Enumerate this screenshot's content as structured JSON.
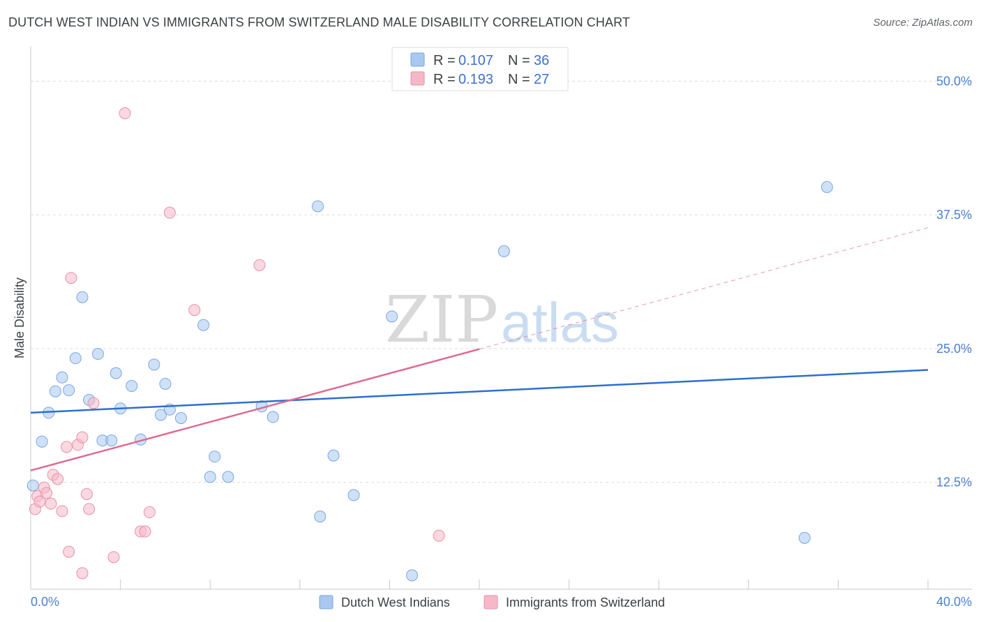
{
  "header": {
    "title": "DUTCH WEST INDIAN VS IMMIGRANTS FROM SWITZERLAND MALE DISABILITY CORRELATION CHART",
    "source": "Source: ZipAtlas.com"
  },
  "legend": {
    "r_label": "R =",
    "n_label": "N =",
    "rows": [
      {
        "r": "0.107",
        "n": "36",
        "color": "#a8c8f0"
      },
      {
        "r": "0.193",
        "n": "27",
        "color": "#f5b8c8"
      }
    ]
  },
  "watermark": {
    "left": "ZIP",
    "right": "atlas"
  },
  "chart_data": {
    "type": "scatter",
    "title": "DUTCH WEST INDIAN VS IMMIGRANTS FROM SWITZERLAND MALE DISABILITY CORRELATION CHART",
    "ylabel": "Male Disability",
    "xlim": [
      0,
      40
    ],
    "ylim": [
      2.5,
      52.5
    ],
    "x_tick_labels": [
      "0.0%",
      "40.0%"
    ],
    "y_ticks": [
      12.5,
      25.0,
      37.5,
      50.0
    ],
    "y_tick_labels": [
      "12.5%",
      "25.0%",
      "37.5%",
      "50.0%"
    ],
    "grid": true,
    "series": [
      {
        "name": "Dutch West Indians",
        "color": "#a8c8f0",
        "stroke": "#7aa6e0",
        "line_color": "#2c6fcf",
        "trend": {
          "x": [
            0,
            40
          ],
          "y": [
            19.0,
            23.0
          ],
          "dashed_from": null
        },
        "points": [
          [
            0.1,
            12.2
          ],
          [
            0.5,
            16.3
          ],
          [
            0.8,
            19.0
          ],
          [
            1.1,
            21.0
          ],
          [
            1.4,
            22.3
          ],
          [
            1.7,
            21.1
          ],
          [
            2.0,
            24.1
          ],
          [
            2.3,
            29.8
          ],
          [
            2.6,
            20.2
          ],
          [
            3.0,
            24.5
          ],
          [
            3.2,
            16.4
          ],
          [
            3.6,
            16.4
          ],
          [
            3.8,
            22.7
          ],
          [
            4.0,
            19.4
          ],
          [
            4.5,
            21.5
          ],
          [
            4.9,
            16.5
          ],
          [
            5.5,
            23.5
          ],
          [
            5.8,
            18.8
          ],
          [
            6.0,
            21.7
          ],
          [
            6.2,
            19.3
          ],
          [
            6.7,
            18.5
          ],
          [
            7.7,
            27.2
          ],
          [
            8.2,
            14.9
          ],
          [
            8.0,
            13.0
          ],
          [
            8.8,
            13.0
          ],
          [
            10.3,
            19.6
          ],
          [
            10.8,
            18.6
          ],
          [
            12.8,
            38.3
          ],
          [
            12.9,
            9.3
          ],
          [
            13.5,
            15.0
          ],
          [
            14.4,
            11.3
          ],
          [
            16.1,
            28.0
          ],
          [
            17.0,
            3.8
          ],
          [
            21.1,
            34.1
          ],
          [
            34.5,
            7.3
          ],
          [
            35.5,
            40.1
          ]
        ]
      },
      {
        "name": "Immigrants from Switzerland",
        "color": "#f5b8c8",
        "stroke": "#e890a8",
        "line_color": "#e06a90",
        "trend": {
          "x": [
            0,
            40
          ],
          "y": [
            13.6,
            36.3
          ],
          "dashed_from": 20
        },
        "points": [
          [
            0.2,
            10.0
          ],
          [
            0.3,
            11.2
          ],
          [
            0.4,
            10.7
          ],
          [
            0.6,
            12.0
          ],
          [
            0.7,
            11.5
          ],
          [
            0.9,
            10.5
          ],
          [
            1.0,
            13.2
          ],
          [
            1.2,
            12.8
          ],
          [
            1.4,
            9.8
          ],
          [
            1.6,
            15.8
          ],
          [
            1.7,
            6.0
          ],
          [
            1.8,
            31.6
          ],
          [
            2.1,
            16.0
          ],
          [
            2.3,
            16.7
          ],
          [
            2.3,
            4.0
          ],
          [
            2.5,
            11.4
          ],
          [
            2.6,
            10.0
          ],
          [
            2.8,
            19.9
          ],
          [
            3.7,
            5.5
          ],
          [
            4.2,
            47.0
          ],
          [
            4.9,
            7.9
          ],
          [
            5.1,
            7.9
          ],
          [
            5.3,
            9.7
          ],
          [
            6.2,
            37.7
          ],
          [
            7.3,
            28.6
          ],
          [
            10.2,
            32.8
          ],
          [
            18.2,
            7.5
          ]
        ]
      }
    ]
  }
}
